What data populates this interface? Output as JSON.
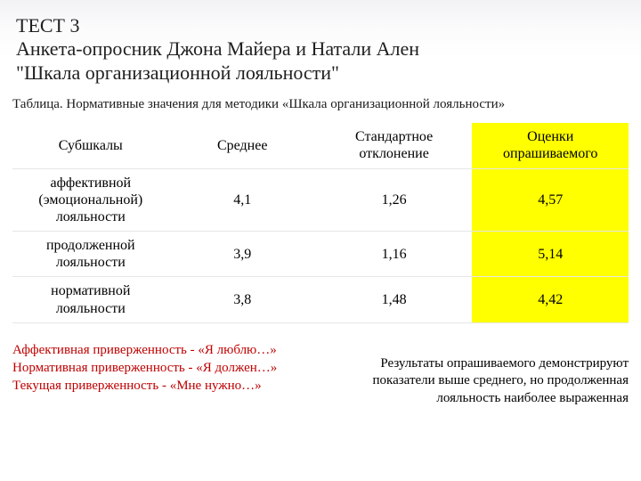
{
  "title": {
    "line1": "ТЕСТ 3",
    "line2": "Анкета-опросник Джона Майера и Натали Ален",
    "line3": "\"Шкала организационной лояльности\""
  },
  "caption": "Таблица. Нормативные значения для методики «Шкала организационной лояльности»",
  "table": {
    "columns": [
      "Субшкалы",
      "Среднее",
      "Стандартное отклонение",
      "Оценки опрашиваемого"
    ],
    "highlight_col_index": 3,
    "highlight_bg": "#ffff00",
    "rows": [
      {
        "label": "аффективной (эмоциональной) лояльности",
        "mean": "4,1",
        "sd": "1,26",
        "score": "4,57"
      },
      {
        "label": "продолженной лояльности",
        "mean": "3,9",
        "sd": "1,16",
        "score": "5,14"
      },
      {
        "label": "нормативной лояльности",
        "mean": "3,8",
        "sd": "1,48",
        "score": "4,42"
      }
    ],
    "border_color": "#e6e6e6",
    "text_color": "#000000",
    "font_size_pt": 12
  },
  "legend": {
    "line1": "Аффективная приверженность - «Я люблю…»",
    "line2": "Нормативная приверженность - «Я должен…»",
    "line3": "Текущая приверженность - «Мне нужно…»",
    "color": "#c00000"
  },
  "conclusion": "Результаты опрашиваемого демонстрируют показатели выше среднего, но продолженная лояльность наиболее выраженная",
  "page_bg": "#ffffff"
}
